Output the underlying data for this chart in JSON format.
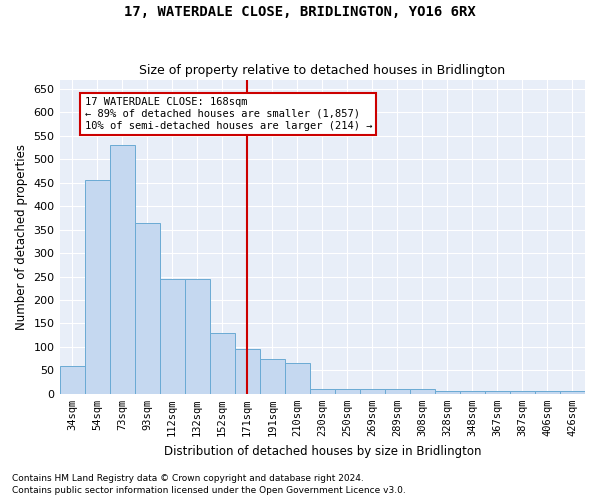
{
  "title": "17, WATERDALE CLOSE, BRIDLINGTON, YO16 6RX",
  "subtitle": "Size of property relative to detached houses in Bridlington",
  "xlabel": "Distribution of detached houses by size in Bridlington",
  "ylabel": "Number of detached properties",
  "footnote1": "Contains HM Land Registry data © Crown copyright and database right 2024.",
  "footnote2": "Contains public sector information licensed under the Open Government Licence v3.0.",
  "property_line_label": "17 WATERDALE CLOSE: 168sqm",
  "annotation_line1": "← 89% of detached houses are smaller (1,857)",
  "annotation_line2": "10% of semi-detached houses are larger (214) →",
  "bar_color": "#c5d8f0",
  "bar_edge_color": "#6aaad4",
  "line_color": "#cc0000",
  "annotation_box_edge": "#cc0000",
  "bg_color": "#e8eef8",
  "categories": [
    "34sqm",
    "54sqm",
    "73sqm",
    "93sqm",
    "112sqm",
    "132sqm",
    "152sqm",
    "171sqm",
    "191sqm",
    "210sqm",
    "230sqm",
    "250sqm",
    "269sqm",
    "289sqm",
    "308sqm",
    "328sqm",
    "348sqm",
    "367sqm",
    "387sqm",
    "406sqm",
    "426sqm"
  ],
  "values": [
    60,
    455,
    530,
    365,
    245,
    245,
    130,
    95,
    75,
    65,
    10,
    10,
    10,
    10,
    10,
    5,
    5,
    5,
    5,
    5,
    5
  ],
  "ylim": [
    0,
    670
  ],
  "yticks": [
    0,
    50,
    100,
    150,
    200,
    250,
    300,
    350,
    400,
    450,
    500,
    550,
    600,
    650
  ],
  "property_bin_index": 7,
  "figsize": [
    6.0,
    5.0
  ],
  "dpi": 100
}
